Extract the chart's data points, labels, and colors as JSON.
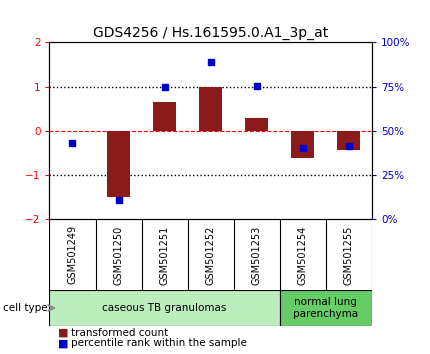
{
  "title": "GDS4256 / Hs.161595.0.A1_3p_at",
  "samples": [
    "GSM501249",
    "GSM501250",
    "GSM501251",
    "GSM501252",
    "GSM501253",
    "GSM501254",
    "GSM501255"
  ],
  "red_bars": [
    0.0,
    -1.5,
    0.65,
    1.0,
    0.3,
    -0.6,
    -0.42
  ],
  "blue_squares_left": [
    -0.28,
    -1.55,
    1.0,
    1.55,
    1.02,
    -0.38,
    -0.35
  ],
  "ylim_left": [
    -2,
    2
  ],
  "ylim_right": [
    0,
    100
  ],
  "groups": [
    {
      "label": "caseous TB granulomas",
      "start": 0,
      "end": 5,
      "color": "#bbeebc"
    },
    {
      "label": "normal lung\nparenchyma",
      "start": 5,
      "end": 7,
      "color": "#66cc66"
    }
  ],
  "bar_color": "#8B1A1A",
  "square_color": "#0000CC",
  "hline_dashed_color": "red",
  "hline_dotted_color": "black",
  "bg_color": "white",
  "title_fontsize": 10,
  "tick_fontsize": 7.5,
  "sample_fontsize": 7,
  "legend_fontsize": 7.5
}
